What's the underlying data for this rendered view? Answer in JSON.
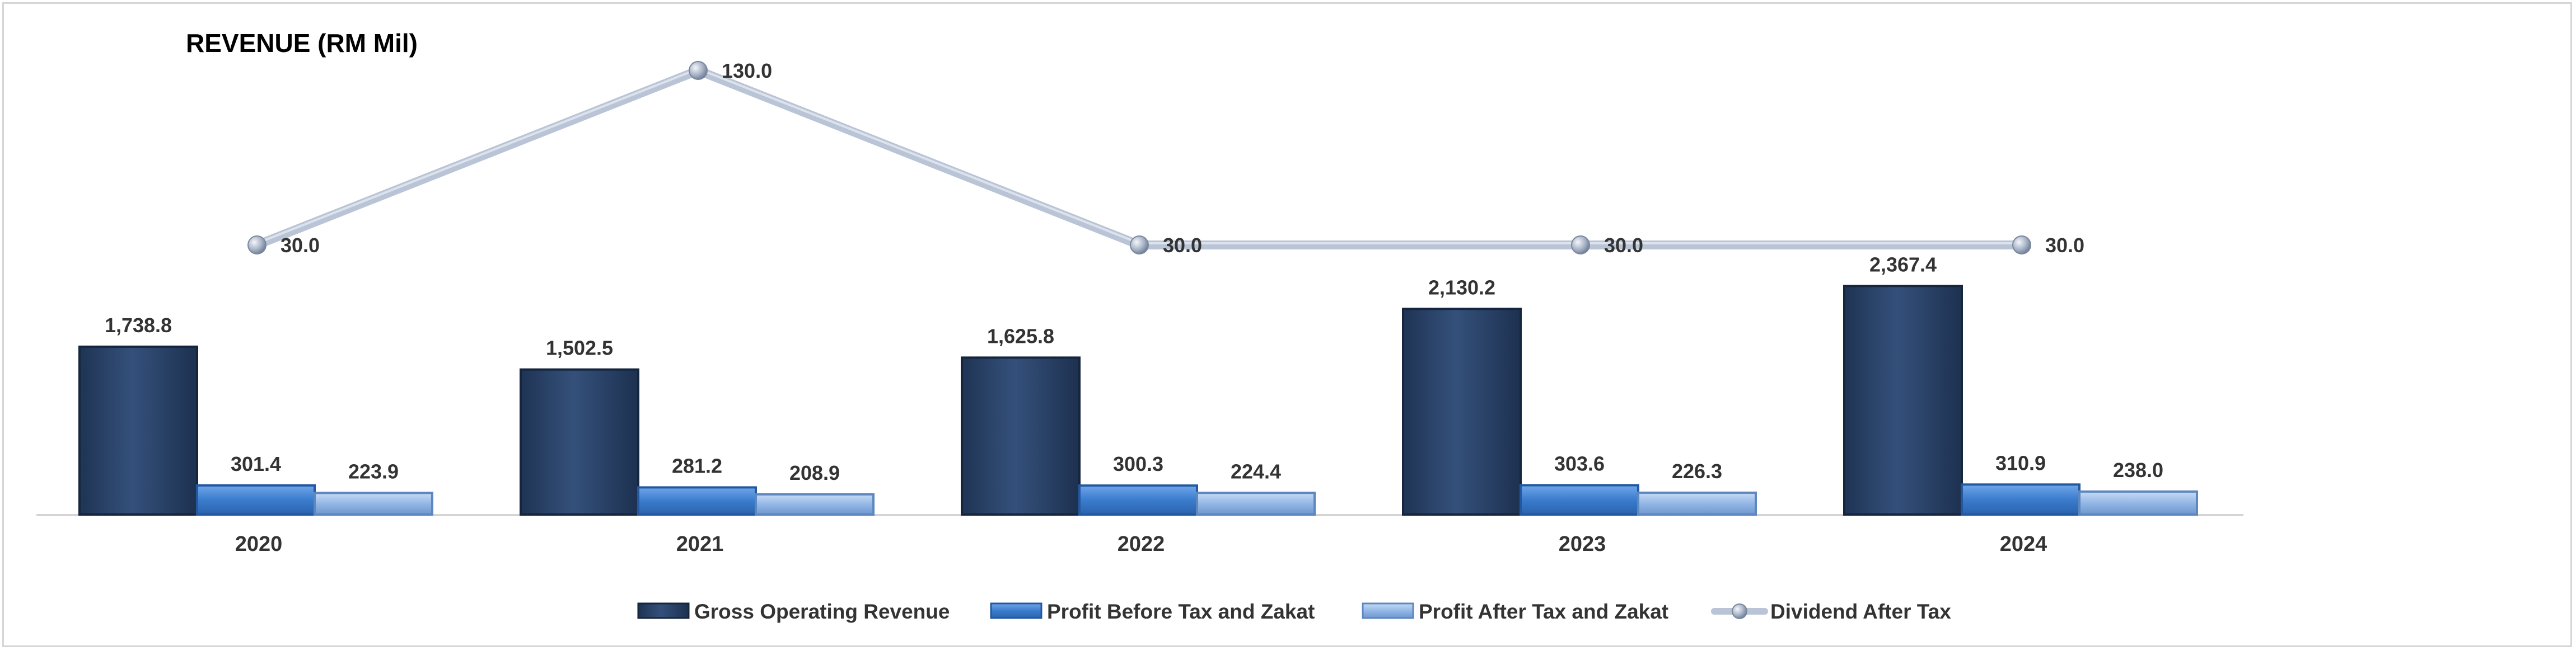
{
  "chart_data": {
    "type": "bar",
    "title": "REVENUE (RM Mil)",
    "categories": [
      "2020",
      "2021",
      "2022",
      "2023",
      "2024"
    ],
    "series": [
      {
        "name": "Gross Operating Revenue",
        "kind": "bar",
        "color": "#2a4366",
        "values": [
          1738.8,
          1502.5,
          1625.8,
          2130.2,
          2367.4
        ],
        "labels": [
          "1,738.8",
          "1,502.5",
          "1,625.8",
          "2,130.2",
          "2,367.4"
        ]
      },
      {
        "name": "Profit Before Tax and Zakat",
        "kind": "bar",
        "color": "#3f7fd0",
        "values": [
          301.4,
          281.2,
          300.3,
          303.6,
          310.9
        ],
        "labels": [
          "301.4",
          "281.2",
          "300.3",
          "303.6",
          "310.9"
        ]
      },
      {
        "name": "Profit After Tax and Zakat",
        "kind": "bar",
        "color": "#94b8e6",
        "values": [
          223.9,
          208.9,
          224.4,
          226.3,
          238.0
        ],
        "labels": [
          "223.9",
          "208.9",
          "224.4",
          "226.3",
          "238.0"
        ]
      },
      {
        "name": "Dividend After Tax",
        "kind": "line",
        "color": "#b9c4d6",
        "values": [
          30.0,
          130.0,
          30.0,
          30.0,
          30.0
        ],
        "labels": [
          "30.0",
          "130.0",
          "30.0",
          "30.0",
          "30.0"
        ]
      }
    ],
    "legend_position": "bottom",
    "grid": false
  }
}
